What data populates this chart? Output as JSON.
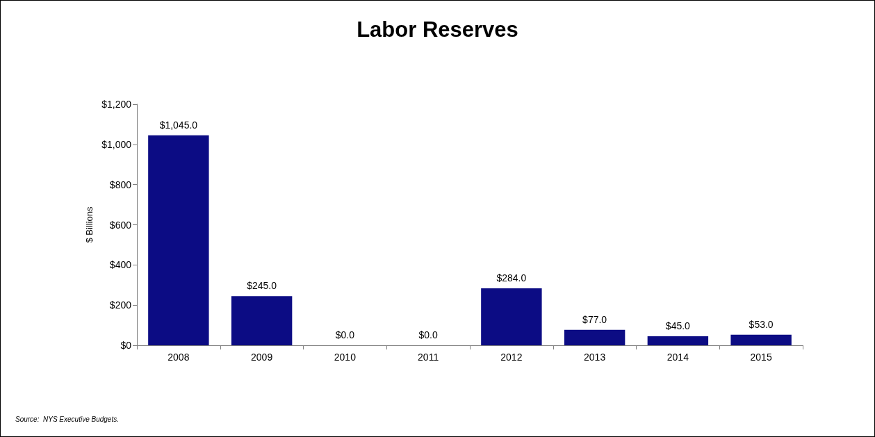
{
  "chart_data": {
    "type": "bar",
    "title": "Labor Reserves",
    "ylabel": "$ Billions",
    "categories": [
      "2008",
      "2009",
      "2010",
      "2011",
      "2012",
      "2013",
      "2014",
      "2015"
    ],
    "values": [
      1045,
      245,
      0,
      0,
      284,
      77,
      45,
      53
    ],
    "value_labels": [
      "$1,045.0",
      "$245.0",
      "$0.0",
      "$0.0",
      "$284.0",
      "$77.0",
      "$45.0",
      "$53.0"
    ],
    "color": "#0c0c84",
    "ylim": [
      0,
      1200
    ],
    "yticks": [
      {
        "value": 0,
        "label": "$0"
      },
      {
        "value": 200,
        "label": "$200"
      },
      {
        "value": 400,
        "label": "$400"
      },
      {
        "value": 600,
        "label": "$600"
      },
      {
        "value": 800,
        "label": "$800"
      },
      {
        "value": 1000,
        "label": "$1,000"
      },
      {
        "value": 1200,
        "label": "$1,200"
      }
    ],
    "grid": false,
    "annotations": [
      "Source:  NYS Executive Budgets."
    ]
  }
}
